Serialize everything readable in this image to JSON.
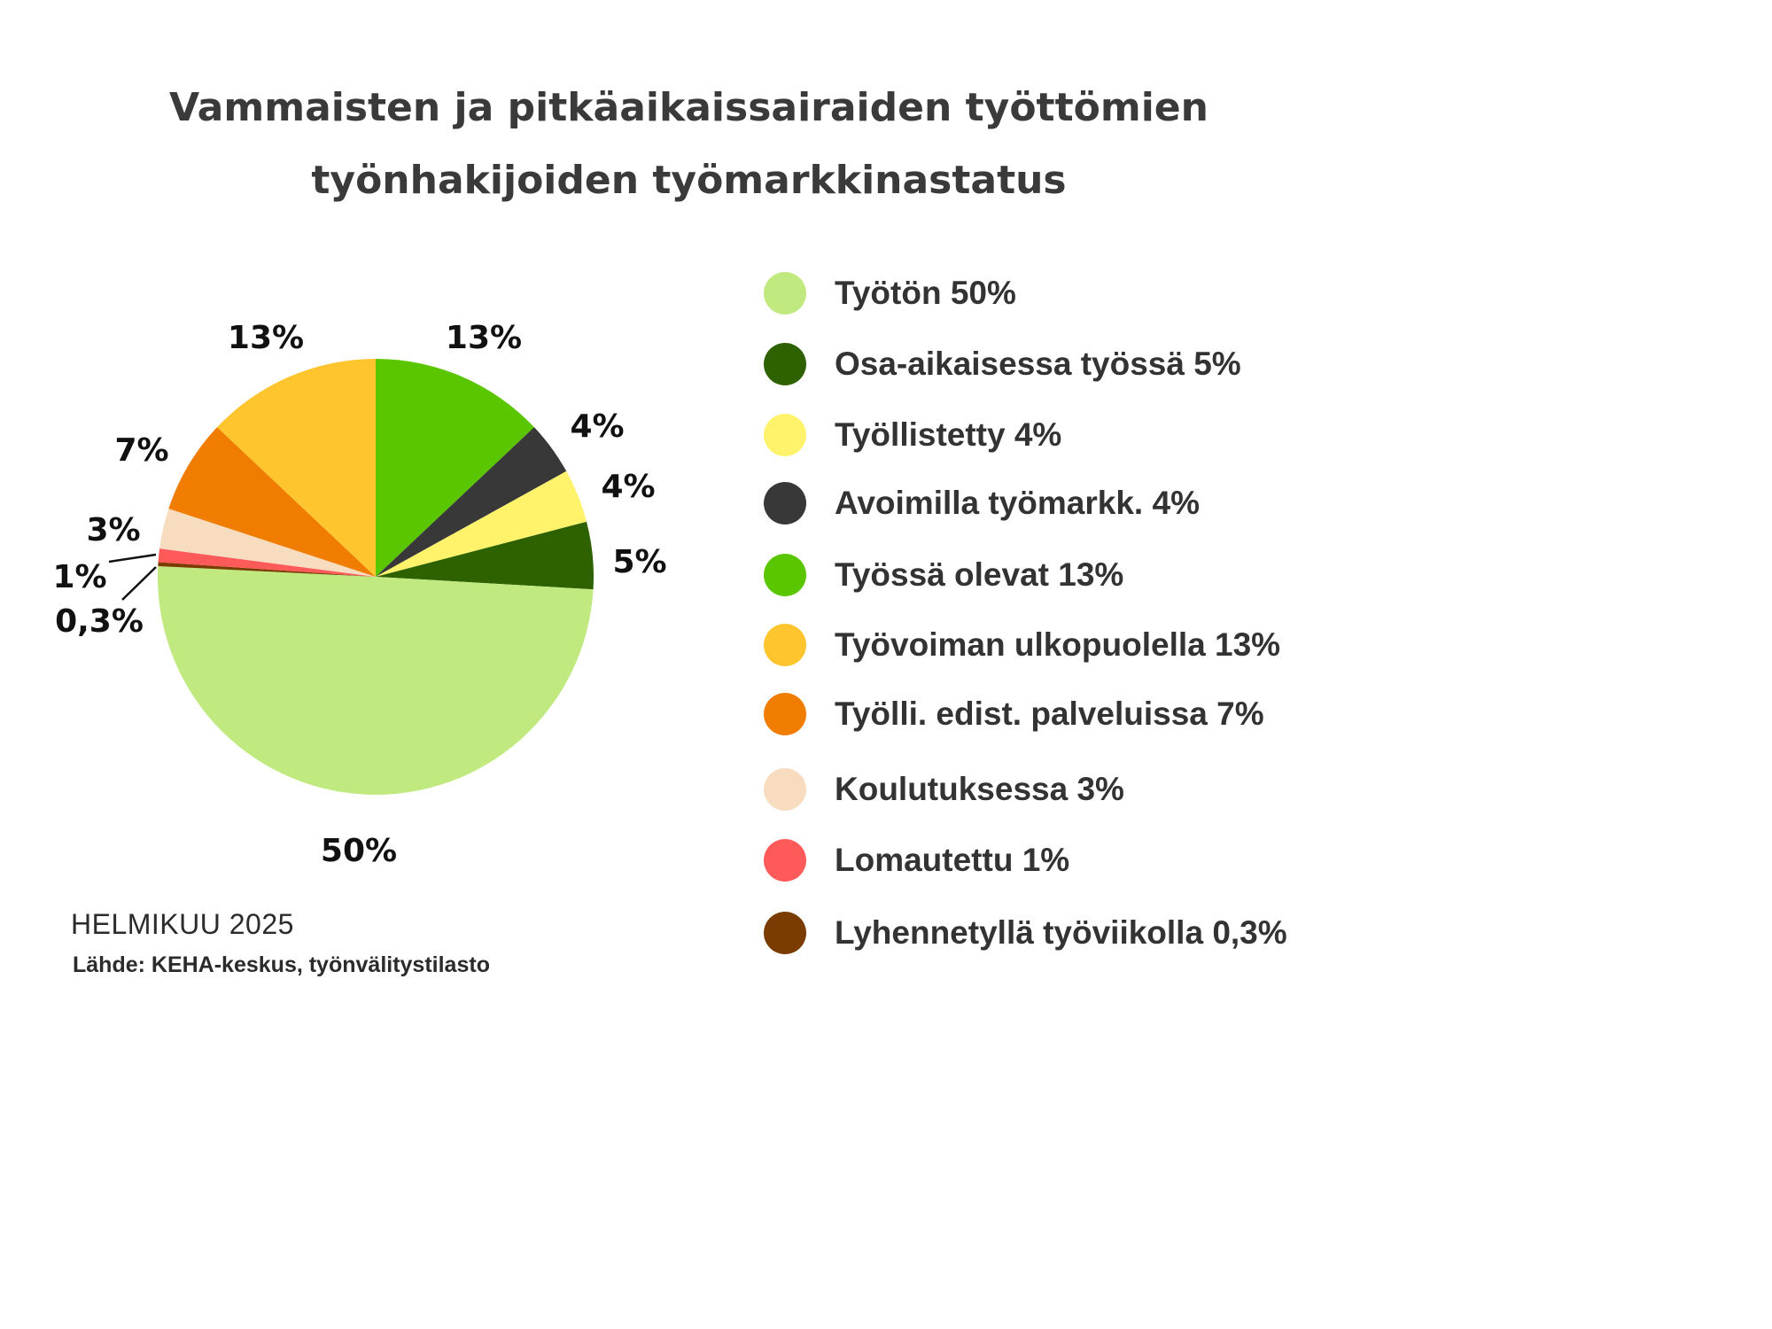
{
  "title": {
    "line1": "Vammaisten ja pitkäaikaissairaiden työttömien",
    "line2": "työnhakijoiden työmarkkinastatus"
  },
  "chart_data": {
    "type": "pie",
    "title": "Vammaisten ja pitkäaikaissairaiden työttömien työnhakijoiden työmarkkinastatus",
    "unit": "%",
    "legend_position": "right",
    "slices": [
      {
        "name": "Työssä olevat",
        "value": 13,
        "label": "13%",
        "legend": "Työssä olevat 13%",
        "color": "#5ac600"
      },
      {
        "name": "Avoimilla työmarkk.",
        "value": 4,
        "label": "4%",
        "legend": "Avoimilla työmarkk. 4%",
        "color": "#383838"
      },
      {
        "name": "Työllistetty",
        "value": 4,
        "label": "4%",
        "legend": "Työllistetty 4%",
        "color": "#fff36b"
      },
      {
        "name": "Osa-aikaisessa työssä",
        "value": 5,
        "label": "5%",
        "legend": "Osa-aikaisessa työssä 5%",
        "color": "#2e6200"
      },
      {
        "name": "Työtön",
        "value": 50,
        "label": "50%",
        "legend": "Työtön 50%",
        "color": "#c0ea7f"
      },
      {
        "name": "Lyhennetyllä työviikolla",
        "value": 0.3,
        "label": "0,3%",
        "legend": "Lyhennetyllä työviikolla 0,3%",
        "color": "#7a3c00"
      },
      {
        "name": "Lomautettu",
        "value": 1,
        "label": "1%",
        "legend": "Lomautettu 1%",
        "color": "#ff5a5a"
      },
      {
        "name": "Koulutuksessa",
        "value": 3,
        "label": "3%",
        "legend": "Koulutuksessa 3%",
        "color": "#f8dcc0"
      },
      {
        "name": "Työlli. edist. palveluissa",
        "value": 7,
        "label": "7%",
        "legend": "Työlli. edist. palveluissa 7%",
        "color": "#f07d00"
      },
      {
        "name": "Työvoiman ulkopuolella",
        "value": 13,
        "label": "13%",
        "legend": "Työvoiman ulkopuolella 13%",
        "color": "#fec52e"
      }
    ],
    "legend_order": [
      "Työtön",
      "Osa-aikaisessa työssä",
      "Työllistetty",
      "Avoimilla työmarkk.",
      "Työssä olevat",
      "Työvoiman ulkopuolella",
      "Työlli. edist. palveluissa",
      "Koulutuksessa",
      "Lomautettu",
      "Lyhennetyllä työviikolla"
    ]
  },
  "footer": {
    "date": "HELMIKUU 2025",
    "source": "Lähde: KEHA-keskus, työnvälitystilasto"
  }
}
